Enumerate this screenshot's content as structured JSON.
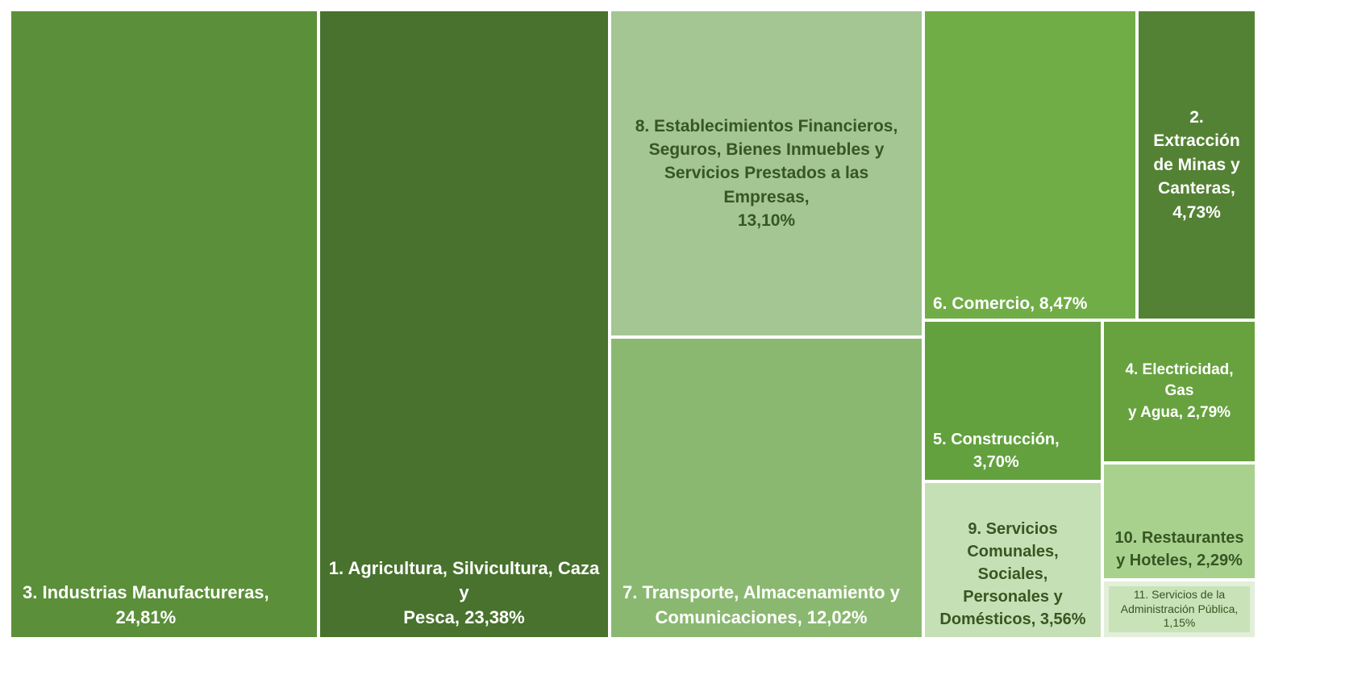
{
  "chart_data": {
    "type": "treemap",
    "title": "",
    "items": [
      {
        "id": 3,
        "label": "3. Industrias Manufactureras,\n24,81%",
        "name": "3. Industrias Manufactureras",
        "value": 24.81,
        "color": "#5b8f3a",
        "text_color": "#ffffff"
      },
      {
        "id": 1,
        "label": "1. Agricultura, Silvicultura, Caza y\nPesca, 23,38%",
        "name": "1. Agricultura, Silvicultura, Caza y Pesca",
        "value": 23.38,
        "color": "#48722d",
        "text_color": "#ffffff"
      },
      {
        "id": 8,
        "label": "8. Establecimientos Financieros,\nSeguros, Bienes Inmuebles y\nServicios Prestados a las Empresas,\n13,10%",
        "name": "8. Establecimientos Financieros, Seguros, Bienes Inmuebles y Servicios Prestados a las Empresas",
        "value": 13.1,
        "color": "#a3c693",
        "text_color": "#375623"
      },
      {
        "id": 7,
        "label": "7. Transporte, Almacenamiento y\nComunicaciones, 12,02%",
        "name": "7. Transporte, Almacenamiento y Comunicaciones",
        "value": 12.02,
        "color": "#8bb871",
        "text_color": "#ffffff"
      },
      {
        "id": 6,
        "label": "6. Comercio, 8,47%",
        "name": "6. Comercio",
        "value": 8.47,
        "color": "#70ad47",
        "text_color": "#ffffff"
      },
      {
        "id": 2,
        "label": "2. Extracción\nde Minas y\nCanteras,\n4,73%",
        "name": "2. Extracción de Minas y Canteras",
        "value": 4.73,
        "color": "#548235",
        "text_color": "#ffffff"
      },
      {
        "id": 5,
        "label": "5. Construcción,\n3,70%",
        "name": "5. Construcción",
        "value": 3.7,
        "color": "#63a13f",
        "text_color": "#ffffff"
      },
      {
        "id": 4,
        "label": "4. Electricidad, Gas\ny Agua, 2,79%",
        "name": "4. Electricidad, Gas y Agua",
        "value": 2.79,
        "color": "#67a23f",
        "text_color": "#ffffff"
      },
      {
        "id": 10,
        "label": "10. Restaurantes\ny Hoteles, 2,29%",
        "name": "10. Restaurantes y Hoteles",
        "value": 2.29,
        "color": "#a9d18e",
        "text_color": "#375623"
      },
      {
        "id": 9,
        "label": "9. Servicios\nComunales, Sociales,\nPersonales y\nDomésticos, 3,56%",
        "name": "9. Servicios Comunales, Sociales, Personales y Domésticos",
        "value": 3.56,
        "color": "#c5e0b4",
        "text_color": "#375623"
      },
      {
        "id": 11,
        "label": "11. Servicios de la\nAdministración Pública,\n1,15%",
        "name": "11. Servicios de la Administración Pública",
        "value": 1.15,
        "color": "#e2efda",
        "inner_color": "#c9e2b7",
        "text_color": "#375623"
      }
    ]
  }
}
